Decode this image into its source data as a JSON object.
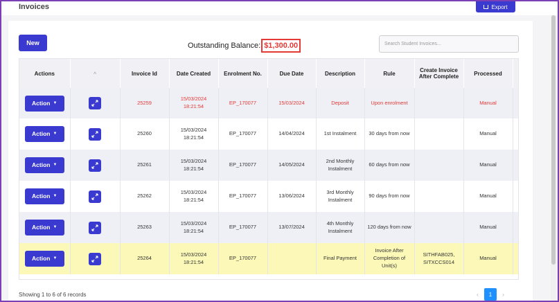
{
  "header": {
    "title": "Invoices",
    "export_label": "Export"
  },
  "toolbar": {
    "new_label": "New",
    "balance_label": "Outstanding Balance:",
    "balance_amount": "$1,300.00",
    "search_placeholder": "Search Student Invoices..."
  },
  "table": {
    "columns": [
      "Actions",
      "^",
      "Invoice Id",
      "Date Created",
      "Enrolment No.",
      "Due Date",
      "Description",
      "Rule",
      "Create Invoice After Complete",
      "Processed"
    ],
    "action_label": "Action",
    "rows": [
      {
        "invoice_id": "25259",
        "date_created": "15/03/2024 18:21:54",
        "enrolment_no": "EP_170077",
        "due_date": "15/03/2024",
        "description": "Deposit",
        "rule": "Upon enrolment",
        "create_after": "",
        "processed": "Manual"
      },
      {
        "invoice_id": "25260",
        "date_created": "15/03/2024 18:21:54",
        "enrolment_no": "EP_170077",
        "due_date": "14/04/2024",
        "description": "1st Instalment",
        "rule": "30 days from now",
        "create_after": "",
        "processed": "Manual"
      },
      {
        "invoice_id": "25261",
        "date_created": "15/03/2024 18:21:54",
        "enrolment_no": "EP_170077",
        "due_date": "14/05/2024",
        "description": "2nd Monthly Instalment",
        "rule": "60 days from now",
        "create_after": "",
        "processed": "Manual"
      },
      {
        "invoice_id": "25262",
        "date_created": "15/03/2024 18:21:54",
        "enrolment_no": "EP_170077",
        "due_date": "13/06/2024",
        "description": "3rd Monthly Instalment",
        "rule": "90 days from now",
        "create_after": "",
        "processed": "Manual"
      },
      {
        "invoice_id": "25263",
        "date_created": "15/03/2024 18:21:54",
        "enrolment_no": "EP_170077",
        "due_date": "13/07/2024",
        "description": "4th Monthly Instalment",
        "rule": "120 days from now",
        "create_after": "",
        "processed": "Manual"
      },
      {
        "invoice_id": "25264",
        "date_created": "15/03/2024 18:21:54",
        "enrolment_no": "EP_170077",
        "due_date": "",
        "description": "Final Payment",
        "rule": "Invoice After Completion of Unit(s)",
        "create_after": "SITHFAB025, SITXCCS014",
        "processed": "Manual"
      }
    ]
  },
  "footer": {
    "records_text": "Showing 1 to 6 of 6 records",
    "current_page": "1"
  },
  "colors": {
    "accent": "#3a3ad1",
    "alert": "#e53935",
    "highlight": "#fcf9b8",
    "page_active": "#1e90ff"
  }
}
